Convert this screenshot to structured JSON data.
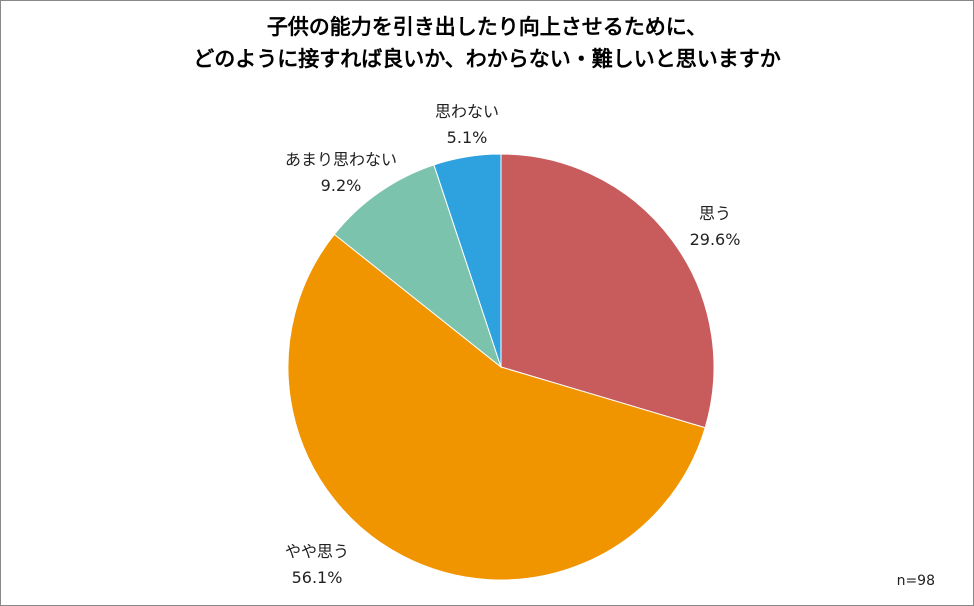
{
  "chart_data": {
    "type": "pie",
    "title_lines": [
      "子供の能力を引き出したり向上させるために、",
      "どのように接すれば良いか、わからない・難しいと思いますか"
    ],
    "slices": [
      {
        "label": "思う",
        "value_label": "29.6%",
        "value": 29.6,
        "color": "#C85C5C"
      },
      {
        "label": "やや思う",
        "value_label": "56.1%",
        "value": 56.1,
        "color": "#F09400"
      },
      {
        "label": "あまり思わない",
        "value_label": "9.2%",
        "value": 9.2,
        "color": "#7BC3AD"
      },
      {
        "label": "思わない",
        "value_label": "5.1%",
        "value": 5.1,
        "color": "#2EA2DE"
      }
    ],
    "start": "12 o'clock",
    "direction": "clockwise",
    "legend": "none",
    "note": "n=98"
  }
}
